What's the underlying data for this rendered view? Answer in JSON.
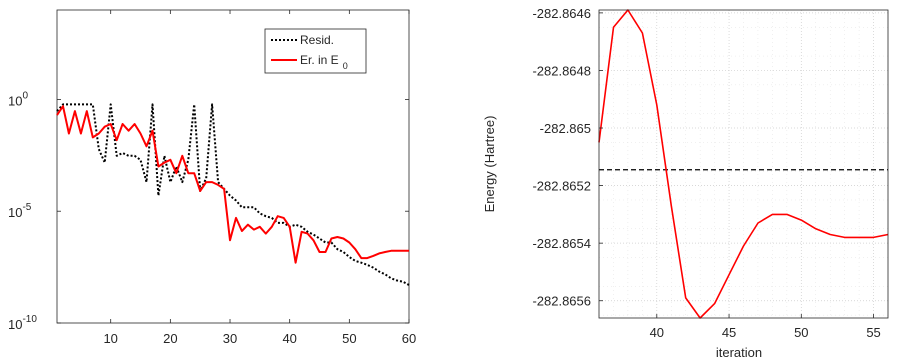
{
  "chart_data": [
    {
      "type": "line",
      "yscale": "log",
      "xlim": [
        1,
        60
      ],
      "ylim": [
        1e-10,
        10000.0
      ],
      "xticks": [
        10,
        20,
        30,
        40,
        50,
        60
      ],
      "xtick_labels": [
        "10",
        "20",
        "30",
        "40",
        "50",
        "60"
      ],
      "yticks": [
        1e-10,
        1e-05,
        1
      ],
      "ytick_labels": [
        {
          "base": "10",
          "exp": "-10"
        },
        {
          "base": "10",
          "exp": "-5"
        },
        {
          "base": "10",
          "exp": "0"
        }
      ],
      "grid": false,
      "legend_position": "top-right",
      "series": [
        {
          "name": "Resid.",
          "color": "#000000",
          "style": "dotted",
          "x": [
            1,
            2,
            3,
            4,
            5,
            6,
            7,
            8,
            9,
            10,
            11,
            12,
            13,
            14,
            15,
            16,
            17,
            18,
            19,
            20,
            21,
            22,
            23,
            24,
            25,
            26,
            27,
            28,
            29,
            30,
            31,
            32,
            33,
            34,
            35,
            36,
            37,
            38,
            39,
            40,
            41,
            42,
            43,
            44,
            45,
            46,
            47,
            48,
            49,
            50,
            51,
            52,
            53,
            54,
            55,
            56,
            57,
            58,
            59,
            60
          ],
          "y": [
            0.3,
            0.6,
            0.6,
            0.6,
            0.6,
            0.6,
            0.6,
            0.006,
            0.0015,
            0.6,
            0.003,
            0.004,
            0.003,
            0.003,
            0.002,
            0.0002,
            0.6,
            5e-05,
            0.003,
            0.0002,
            0.001,
            0.0002,
            0.002,
            0.6,
            8e-05,
            0.0003,
            0.6,
            0.0002,
            0.0001,
            5e-05,
            3e-05,
            1.5e-05,
            1.5e-05,
            1.5e-05,
            8e-06,
            6e-06,
            5e-06,
            3e-06,
            3e-06,
            2e-06,
            2.5e-06,
            2e-06,
            1.2e-06,
            9e-07,
            6e-07,
            4e-07,
            4e-07,
            2e-07,
            1.5e-07,
            9e-08,
            6e-08,
            5e-08,
            4e-08,
            3e-08,
            2e-08,
            1.5e-08,
            1e-08,
            8e-09,
            7e-09,
            5e-09
          ]
        },
        {
          "name": "Er. in E",
          "name_sub": "0",
          "color": "#ff0000",
          "style": "solid",
          "x": [
            1,
            2,
            3,
            4,
            5,
            6,
            7,
            8,
            9,
            10,
            11,
            12,
            13,
            14,
            15,
            16,
            17,
            18,
            19,
            20,
            21,
            22,
            23,
            24,
            25,
            26,
            27,
            28,
            29,
            30,
            31,
            32,
            33,
            34,
            35,
            36,
            37,
            38,
            39,
            40,
            41,
            42,
            43,
            44,
            45,
            46,
            47,
            48,
            49,
            50,
            51,
            52,
            53,
            54,
            55,
            56,
            57,
            58,
            59,
            60
          ],
          "y": [
            0.2,
            0.5,
            0.03,
            0.3,
            0.03,
            0.3,
            0.02,
            0.03,
            0.06,
            0.08,
            0.015,
            0.08,
            0.04,
            0.08,
            0.03,
            0.008,
            0.04,
            0.001,
            0.0015,
            0.002,
            0.0005,
            0.003,
            0.0005,
            0.0005,
            8e-05,
            0.0002,
            0.0002,
            0.00015,
            0.0001,
            5e-07,
            5e-06,
            1.3e-06,
            2.5e-06,
            1.5e-06,
            2e-06,
            1e-06,
            2e-06,
            6e-06,
            5e-06,
            2e-06,
            5e-08,
            1.2e-06,
            1e-06,
            5e-07,
            1.5e-07,
            1.5e-07,
            6e-07,
            7e-07,
            6e-07,
            4e-07,
            2e-07,
            8e-08,
            8e-08,
            1e-07,
            1.3e-07,
            1.5e-07,
            1.7e-07,
            1.7e-07,
            1.7e-07,
            1.7e-07
          ]
        }
      ]
    },
    {
      "type": "line",
      "ylabel": "Energy (Hartree)",
      "xlabel": "iteration",
      "xlim": [
        36,
        56
      ],
      "ylim": [
        -282.86566,
        -282.86459
      ],
      "xticks": [
        40,
        45,
        50,
        55
      ],
      "xtick_labels": [
        "40",
        "45",
        "50",
        "55"
      ],
      "yticks": [
        -282.8656,
        -282.8654,
        -282.8652,
        -282.865,
        -282.8648,
        -282.8646
      ],
      "ytick_labels": [
        "-282.8656",
        "-282.8654",
        "-282.8652",
        "-282.865",
        "-282.8648",
        "-282.8646"
      ],
      "grid": true,
      "reference_line": {
        "y": -282.865145,
        "color": "#000000",
        "style": "dashed"
      },
      "series": [
        {
          "color": "#ff0000",
          "style": "solid",
          "x": [
            36,
            37,
            38,
            39,
            40,
            41,
            42,
            43,
            44,
            45,
            46,
            47,
            48,
            49,
            50,
            51,
            52,
            53,
            54,
            55,
            56
          ],
          "y": [
            -282.86505,
            -282.86465,
            -282.86459,
            -282.86467,
            -282.86492,
            -282.86527,
            -282.86559,
            -282.86566,
            -282.86561,
            -282.86551,
            -282.86541,
            -282.86533,
            -282.8653,
            -282.8653,
            -282.86532,
            -282.86535,
            -282.86537,
            -282.86538,
            -282.86538,
            -282.86538,
            -282.86537
          ]
        }
      ]
    }
  ]
}
